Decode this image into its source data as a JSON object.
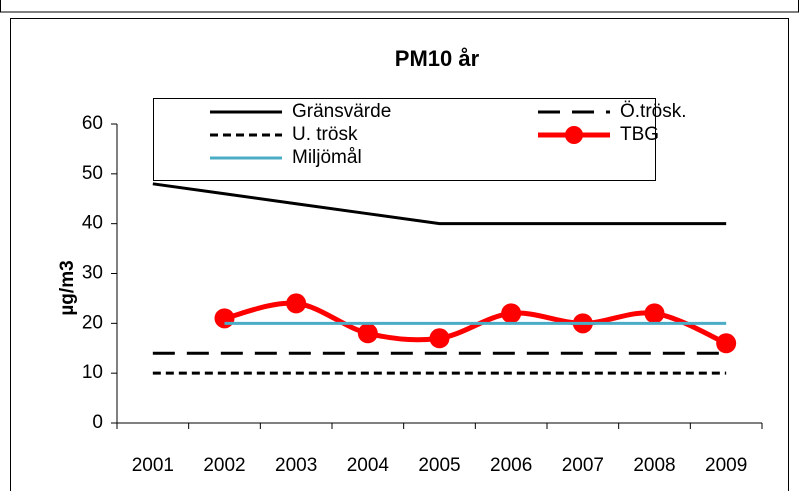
{
  "chart_data": {
    "type": "line",
    "title": "PM10 år",
    "y_label": "µg/m3",
    "categories": [
      "2001",
      "2002",
      "2003",
      "2004",
      "2005",
      "2006",
      "2007",
      "2008",
      "2009"
    ],
    "series": [
      {
        "name": "Gränsvärde",
        "color": "#000000",
        "style": "solid",
        "values": [
          48,
          46,
          44,
          42,
          40,
          40,
          40,
          40,
          40
        ]
      },
      {
        "name": "Ö.trösk.",
        "color": "#000000",
        "style": "long-dash",
        "values": [
          14,
          14,
          14,
          14,
          14,
          14,
          14,
          14,
          14
        ]
      },
      {
        "name": "U. trösk",
        "color": "#000000",
        "style": "short-dash",
        "values": [
          10,
          10,
          10,
          10,
          10,
          10,
          10,
          10,
          10
        ]
      },
      {
        "name": "TBG",
        "color": "#ff0000",
        "style": "solid",
        "marker": "circle",
        "smooth": true,
        "values": [
          null,
          21,
          24,
          18,
          17,
          22,
          20,
          22,
          16
        ]
      },
      {
        "name": "Miljömål",
        "color": "#4bacc6",
        "style": "solid",
        "values": [
          null,
          20,
          20,
          20,
          20,
          20,
          20,
          20,
          20
        ]
      }
    ],
    "ylim": [
      0,
      60
    ],
    "yticks": [
      0,
      10,
      20,
      30,
      40,
      50,
      60
    ],
    "grid": false,
    "legend": "top"
  }
}
